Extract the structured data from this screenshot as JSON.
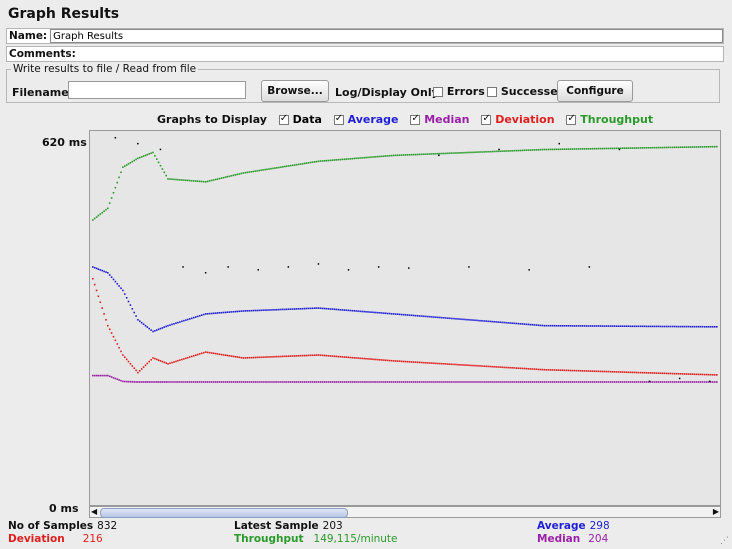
{
  "window_title": "Graph Results",
  "name_field": {
    "label": "Name:",
    "value": "Graph Results"
  },
  "comments_field": {
    "label": "Comments:"
  },
  "file_group": {
    "legend": "Write results to file / Read from file",
    "filename_label": "Filename",
    "filename_value": "",
    "browse_label": "Browse...",
    "log_display_label": "Log/Display Only:",
    "errors_label": "Errors",
    "successes_label": "Successes",
    "configure_label": "Configure"
  },
  "graphs_to_display": {
    "label": "Graphs to Display",
    "items": [
      {
        "label": "Data",
        "checked": true,
        "color": "#000000"
      },
      {
        "label": "Average",
        "checked": true,
        "color": "#1f1fd6"
      },
      {
        "label": "Median",
        "checked": true,
        "color": "#9b1fa8"
      },
      {
        "label": "Deviation",
        "checked": true,
        "color": "#e01e1e"
      },
      {
        "label": "Throughput",
        "checked": true,
        "color": "#2a9a2a"
      }
    ]
  },
  "axis": {
    "ymax_label": "620 ms",
    "ymin_label": "0 ms"
  },
  "chart_data": {
    "type": "scatter",
    "ylim": [
      0,
      620
    ],
    "series": [
      {
        "name": "Throughput",
        "color": "#2a9a2a",
        "x": [
          0,
          20,
          40,
          60,
          80,
          100,
          150,
          200,
          300,
          400,
          600,
          832
        ],
        "y": [
          480,
          500,
          570,
          585,
          595,
          550,
          545,
          560,
          580,
          590,
          600,
          605
        ]
      },
      {
        "name": "Average",
        "color": "#1f1fd6",
        "x": [
          0,
          20,
          40,
          60,
          80,
          100,
          150,
          200,
          300,
          400,
          600,
          832
        ],
        "y": [
          400,
          390,
          360,
          310,
          290,
          300,
          320,
          325,
          330,
          320,
          300,
          298
        ]
      },
      {
        "name": "Deviation",
        "color": "#e01e1e",
        "x": [
          0,
          20,
          40,
          60,
          80,
          100,
          150,
          200,
          300,
          400,
          600,
          832
        ],
        "y": [
          380,
          300,
          250,
          220,
          245,
          235,
          255,
          245,
          250,
          240,
          225,
          216
        ]
      },
      {
        "name": "Median",
        "color": "#9b1fa8",
        "x": [
          0,
          20,
          40,
          60,
          80,
          100,
          150,
          200,
          300,
          400,
          600,
          832
        ],
        "y": [
          215,
          215,
          205,
          204,
          204,
          204,
          204,
          204,
          204,
          204,
          204,
          204
        ]
      },
      {
        "name": "Data",
        "color": "#000000",
        "x": [
          30,
          60,
          90,
          120,
          150,
          180,
          220,
          260,
          300,
          340,
          380,
          420,
          460,
          500,
          540,
          580,
          620,
          660,
          700,
          740,
          780,
          820
        ],
        "y": [
          620,
          610,
          600,
          400,
          390,
          400,
          395,
          400,
          405,
          395,
          400,
          398,
          590,
          400,
          600,
          395,
          610,
          400,
          600,
          205,
          210,
          205
        ]
      }
    ]
  },
  "stats": {
    "samples_label": "No of Samples",
    "samples_value": "832",
    "latest_label": "Latest Sample",
    "latest_value": "203",
    "average_label": "Average",
    "average_value": "298",
    "deviation_label": "Deviation",
    "deviation_value": "216",
    "throughput_label": "Throughput",
    "throughput_value": "149,115/minute",
    "median_label": "Median",
    "median_value": "204"
  }
}
